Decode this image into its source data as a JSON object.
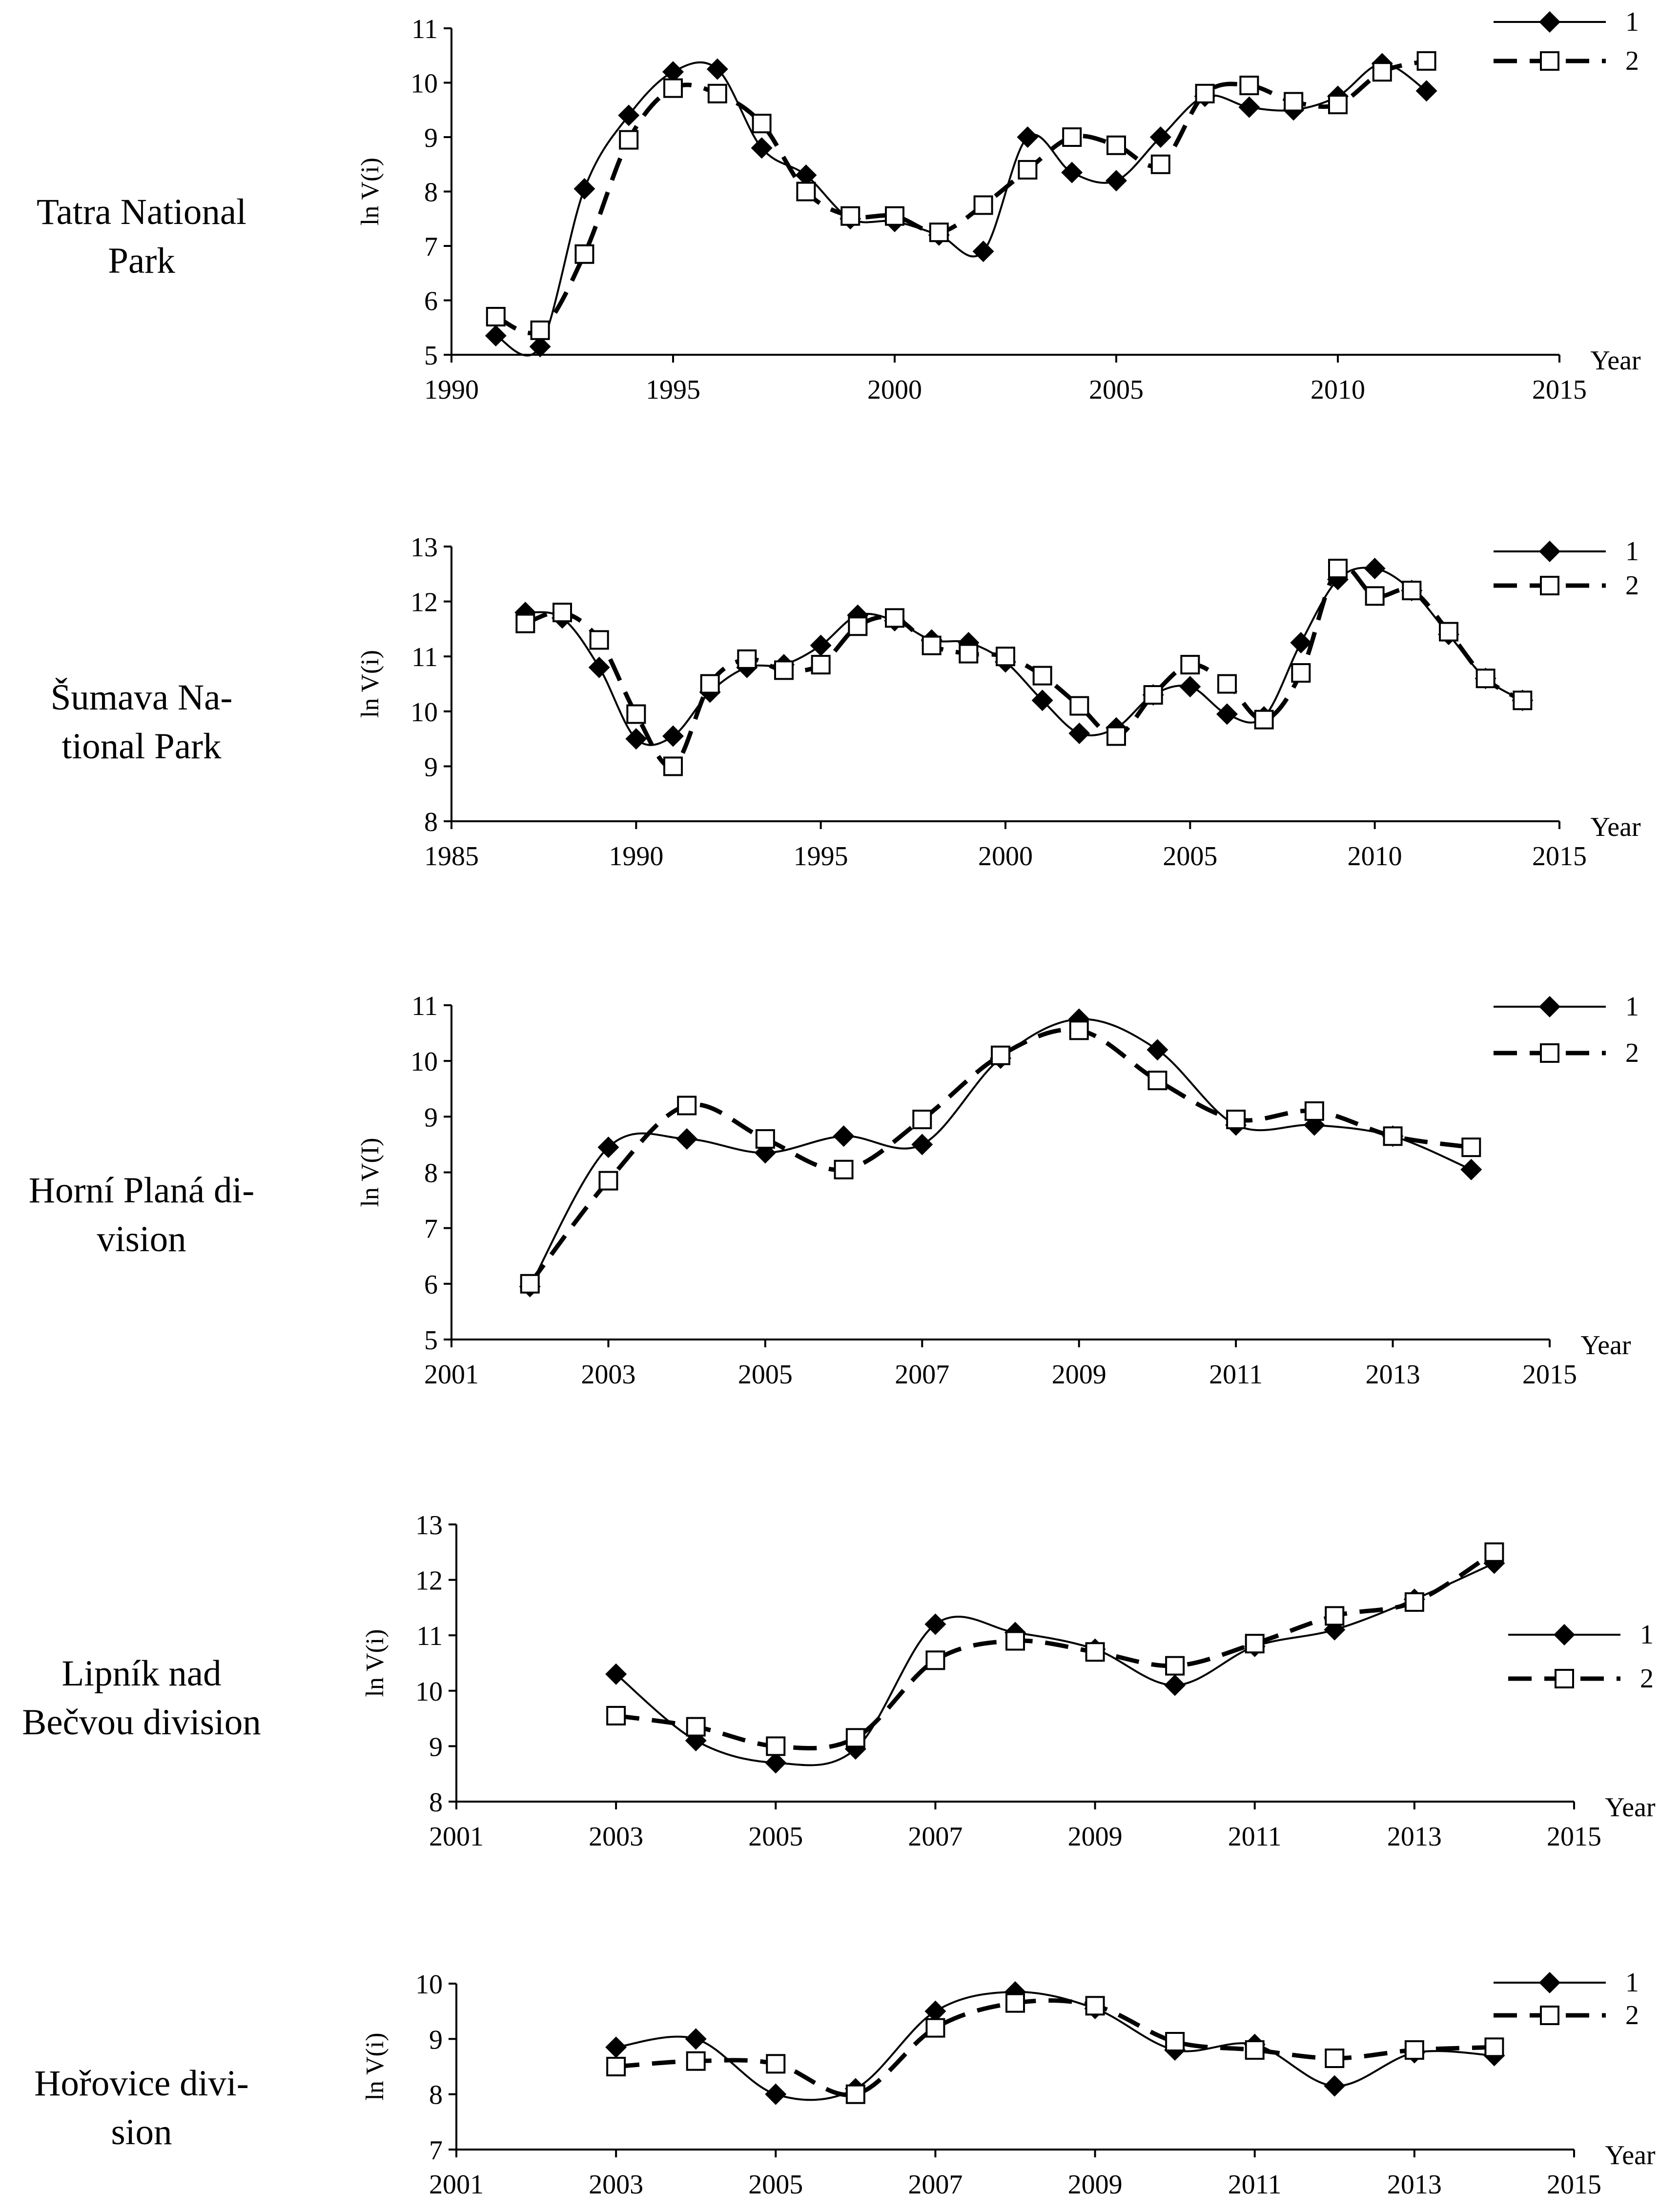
{
  "chart_data": [
    {
      "type": "line",
      "panel_label": "Tatra National Park",
      "ylabel": "ln V(i)",
      "xlabel": "Year",
      "xlim": [
        1990,
        2015
      ],
      "ylim": [
        5,
        11
      ],
      "xticks": [
        1990,
        1995,
        2000,
        2005,
        2010,
        2015
      ],
      "yticks": [
        5,
        6,
        7,
        8,
        9,
        10,
        11
      ],
      "series": [
        {
          "name": "1",
          "marker": "diamond",
          "style": "solid",
          "x": [
            1991,
            1992,
            1993,
            1994,
            1995,
            1996,
            1997,
            1998,
            1999,
            2000,
            2001,
            2002,
            2003,
            2004,
            2005,
            2006,
            2007,
            2008,
            2009,
            2010,
            2011,
            2012
          ],
          "y": [
            5.35,
            5.15,
            8.05,
            9.4,
            10.2,
            10.25,
            8.8,
            8.3,
            7.5,
            7.45,
            7.2,
            6.9,
            9.0,
            8.35,
            8.2,
            9.0,
            9.75,
            9.55,
            9.5,
            9.75,
            10.35,
            9.85
          ]
        },
        {
          "name": "2",
          "marker": "square",
          "style": "dashed",
          "x": [
            1991,
            1992,
            1993,
            1994,
            1995,
            1996,
            1997,
            1998,
            1999,
            2000,
            2001,
            2002,
            2003,
            2004,
            2005,
            2006,
            2007,
            2008,
            2009,
            2010,
            2011,
            2012
          ],
          "y": [
            5.7,
            5.45,
            6.85,
            8.95,
            9.9,
            9.8,
            9.25,
            8.0,
            7.55,
            7.55,
            7.25,
            7.75,
            8.4,
            9.0,
            8.85,
            8.5,
            9.8,
            9.95,
            9.65,
            9.6,
            10.2,
            10.4
          ]
        }
      ]
    },
    {
      "type": "line",
      "panel_label": "Šumava National Park",
      "ylabel": "ln V(i)",
      "xlabel": "Year",
      "xlim": [
        1985,
        2015
      ],
      "ylim": [
        8,
        13
      ],
      "xticks": [
        1985,
        1990,
        1995,
        2000,
        2005,
        2010,
        2015
      ],
      "yticks": [
        8,
        9,
        10,
        11,
        12,
        13
      ],
      "series": [
        {
          "name": "1",
          "marker": "diamond",
          "style": "solid",
          "x": [
            1987,
            1988,
            1989,
            1990,
            1991,
            1992,
            1993,
            1994,
            1995,
            1996,
            1997,
            1998,
            1999,
            2000,
            2001,
            2002,
            2003,
            2004,
            2005,
            2006,
            2007,
            2008,
            2009,
            2010,
            2011,
            2012,
            2013,
            2014
          ],
          "y": [
            11.8,
            11.7,
            10.8,
            9.5,
            9.55,
            10.35,
            10.8,
            10.85,
            11.2,
            11.75,
            11.65,
            11.3,
            11.25,
            10.9,
            10.2,
            9.6,
            9.7,
            10.3,
            10.45,
            9.95,
            9.9,
            11.25,
            12.4,
            12.6,
            12.2,
            11.4,
            10.6,
            10.2
          ]
        },
        {
          "name": "2",
          "marker": "square",
          "style": "dashed",
          "x": [
            1987,
            1988,
            1989,
            1990,
            1991,
            1992,
            1993,
            1994,
            1995,
            1996,
            1997,
            1998,
            1999,
            2000,
            2001,
            2002,
            2003,
            2004,
            2005,
            2006,
            2007,
            2008,
            2009,
            2010,
            2011,
            2012,
            2013,
            2014
          ],
          "y": [
            11.6,
            11.8,
            11.3,
            9.95,
            9.0,
            10.5,
            10.95,
            10.75,
            10.85,
            11.55,
            11.7,
            11.2,
            11.05,
            11.0,
            10.65,
            10.1,
            9.55,
            10.3,
            10.85,
            10.5,
            9.85,
            10.7,
            12.6,
            12.1,
            12.2,
            11.45,
            10.6,
            10.2
          ]
        }
      ]
    },
    {
      "type": "line",
      "panel_label": "Horní Planá division",
      "ylabel": "ln V(I)",
      "xlabel": "Year",
      "xlim": [
        2001,
        2015
      ],
      "ylim": [
        5,
        11
      ],
      "xticks": [
        2001,
        2003,
        2005,
        2007,
        2009,
        2011,
        2013,
        2015
      ],
      "yticks": [
        5,
        6,
        7,
        8,
        9,
        10,
        11
      ],
      "series": [
        {
          "name": "1",
          "marker": "diamond",
          "style": "solid",
          "x": [
            2002,
            2003,
            2004,
            2005,
            2006,
            2007,
            2008,
            2009,
            2010,
            2011,
            2012,
            2013,
            2014
          ],
          "y": [
            5.95,
            8.45,
            8.6,
            8.35,
            8.65,
            8.5,
            10.05,
            10.75,
            10.2,
            8.85,
            8.85,
            8.65,
            8.05
          ]
        },
        {
          "name": "2",
          "marker": "square",
          "style": "dashed",
          "x": [
            2002,
            2003,
            2004,
            2005,
            2006,
            2007,
            2008,
            2009,
            2010,
            2011,
            2012,
            2013,
            2014
          ],
          "y": [
            6.0,
            7.85,
            9.2,
            8.6,
            8.05,
            8.95,
            10.1,
            10.55,
            9.65,
            8.95,
            9.1,
            8.65,
            8.45
          ]
        }
      ]
    },
    {
      "type": "line",
      "panel_label": "Lipník nad Bečvou division",
      "ylabel": "ln V(i)",
      "xlabel": "Year",
      "xlim": [
        2001,
        2015
      ],
      "ylim": [
        8,
        13
      ],
      "xticks": [
        2001,
        2003,
        2005,
        2007,
        2009,
        2011,
        2013,
        2015
      ],
      "yticks": [
        8,
        9,
        10,
        11,
        12,
        13
      ],
      "series": [
        {
          "name": "1",
          "marker": "diamond",
          "style": "solid",
          "x": [
            2003,
            2004,
            2005,
            2006,
            2007,
            2008,
            2009,
            2010,
            2011,
            2012,
            2013,
            2014
          ],
          "y": [
            10.3,
            9.1,
            8.7,
            8.95,
            11.2,
            11.05,
            10.75,
            10.1,
            10.8,
            11.1,
            11.65,
            12.3
          ]
        },
        {
          "name": "2",
          "marker": "square",
          "style": "dashed",
          "x": [
            2003,
            2004,
            2005,
            2006,
            2007,
            2008,
            2009,
            2010,
            2011,
            2012,
            2013,
            2014
          ],
          "y": [
            9.55,
            9.35,
            9.0,
            9.15,
            10.55,
            10.9,
            10.7,
            10.45,
            10.85,
            11.35,
            11.6,
            12.5
          ]
        }
      ]
    },
    {
      "type": "line",
      "panel_label": "Hořovice division",
      "ylabel": "ln V(i)",
      "xlabel": "Year",
      "xlim": [
        2001,
        2015
      ],
      "ylim": [
        7,
        10
      ],
      "xticks": [
        2001,
        2003,
        2005,
        2007,
        2009,
        2011,
        2013,
        2015
      ],
      "yticks": [
        7,
        8,
        9,
        10
      ],
      "series": [
        {
          "name": "1",
          "marker": "diamond",
          "style": "solid",
          "x": [
            2003,
            2004,
            2005,
            2006,
            2007,
            2008,
            2009,
            2010,
            2011,
            2012,
            2013,
            2014
          ],
          "y": [
            8.85,
            9.0,
            8.0,
            8.1,
            9.5,
            9.85,
            9.55,
            8.8,
            8.9,
            8.15,
            8.75,
            8.7
          ]
        },
        {
          "name": "2",
          "marker": "square",
          "style": "dashed",
          "x": [
            2003,
            2004,
            2005,
            2006,
            2007,
            2008,
            2009,
            2010,
            2011,
            2012,
            2013,
            2014
          ],
          "y": [
            8.5,
            8.6,
            8.55,
            8.0,
            9.2,
            9.65,
            9.6,
            8.95,
            8.8,
            8.65,
            8.8,
            8.85
          ]
        }
      ]
    }
  ]
}
